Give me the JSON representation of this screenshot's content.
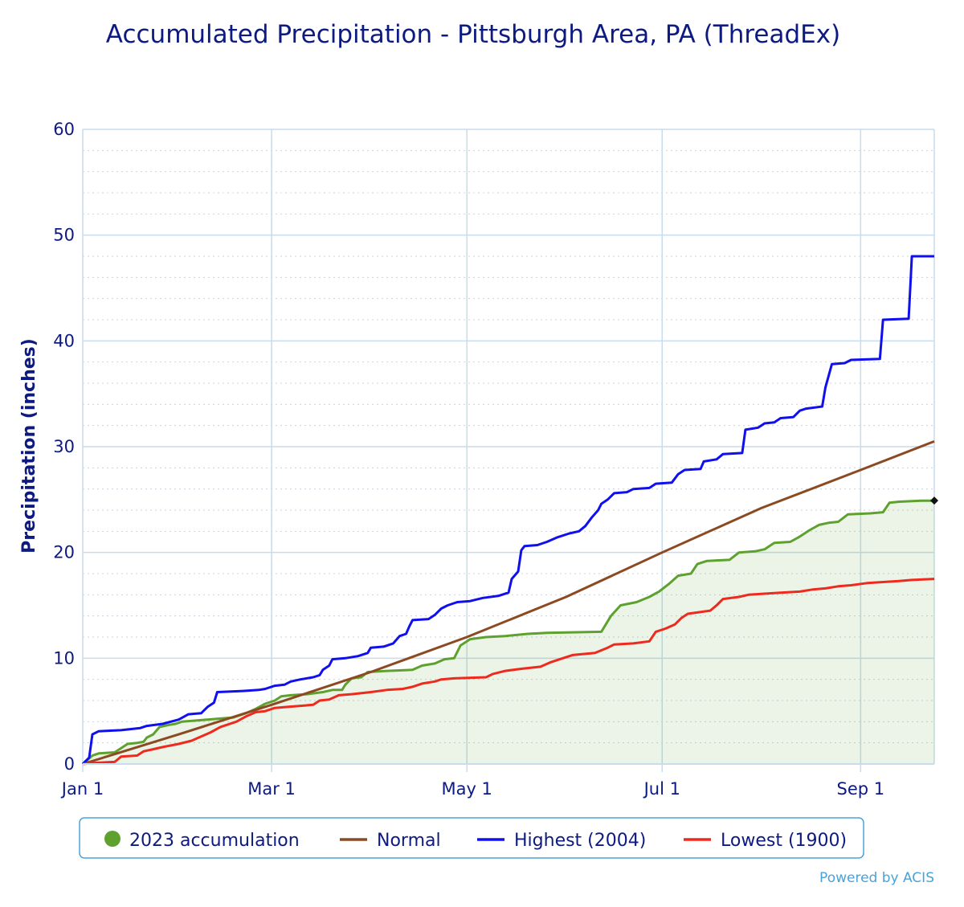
{
  "chart_data": {
    "type": "line",
    "title": "Accumulated Precipitation - Pittsburgh Area, PA (ThreadEx)",
    "ylabel": "Precipitation (inches)",
    "xlabel": "",
    "x_unit": "day of year",
    "x_ticks": [
      {
        "label": "Jan 1",
        "day": 0
      },
      {
        "label": "Mar 1",
        "day": 59
      },
      {
        "label": "May 1",
        "day": 120
      },
      {
        "label": "Jul 1",
        "day": 181
      },
      {
        "label": "Sep 1",
        "day": 243
      }
    ],
    "xlim": [
      0,
      266
    ],
    "ylim": [
      0,
      60
    ],
    "y_ticks": [
      0,
      10,
      20,
      30,
      40,
      50,
      60
    ],
    "grid": true,
    "legend_position": "bottom",
    "credit": "Powered by ACIS",
    "series": [
      {
        "name": "2023 accumulation",
        "style": "area",
        "color": "#5ea12e",
        "points": [
          [
            0,
            0
          ],
          [
            3,
            0.8
          ],
          [
            5,
            1.0
          ],
          [
            10,
            1.1
          ],
          [
            12,
            1.5
          ],
          [
            14,
            1.9
          ],
          [
            17,
            2.0
          ],
          [
            19,
            2.1
          ],
          [
            20,
            2.5
          ],
          [
            22,
            2.8
          ],
          [
            24,
            3.5
          ],
          [
            27,
            3.7
          ],
          [
            29,
            3.8
          ],
          [
            31,
            4.0
          ],
          [
            35,
            4.1
          ],
          [
            39,
            4.2
          ],
          [
            43,
            4.3
          ],
          [
            47,
            4.4
          ],
          [
            51,
            4.8
          ],
          [
            54,
            5.2
          ],
          [
            57,
            5.7
          ],
          [
            60,
            6.0
          ],
          [
            62,
            6.4
          ],
          [
            65,
            6.5
          ],
          [
            70,
            6.6
          ],
          [
            75,
            6.8
          ],
          [
            78,
            7.0
          ],
          [
            81,
            7.0
          ],
          [
            82,
            7.5
          ],
          [
            84,
            8.1
          ],
          [
            87,
            8.2
          ],
          [
            89,
            8.7
          ],
          [
            95,
            8.8
          ],
          [
            103,
            8.9
          ],
          [
            106,
            9.3
          ],
          [
            110,
            9.5
          ],
          [
            113,
            9.9
          ],
          [
            116,
            10.0
          ],
          [
            118,
            11.2
          ],
          [
            121,
            11.8
          ],
          [
            126,
            12.0
          ],
          [
            132,
            12.1
          ],
          [
            139,
            12.3
          ],
          [
            145,
            12.4
          ],
          [
            162,
            12.5
          ],
          [
            165,
            14.0
          ],
          [
            168,
            15.0
          ],
          [
            173,
            15.3
          ],
          [
            177,
            15.8
          ],
          [
            180,
            16.3
          ],
          [
            183,
            17.0
          ],
          [
            186,
            17.8
          ],
          [
            190,
            18.0
          ],
          [
            192,
            18.9
          ],
          [
            195,
            19.2
          ],
          [
            202,
            19.3
          ],
          [
            205,
            20.0
          ],
          [
            210,
            20.1
          ],
          [
            213,
            20.3
          ],
          [
            216,
            20.9
          ],
          [
            221,
            21.0
          ],
          [
            224,
            21.5
          ],
          [
            227,
            22.1
          ],
          [
            230,
            22.6
          ],
          [
            233,
            22.8
          ],
          [
            236,
            22.9
          ],
          [
            239,
            23.6
          ],
          [
            246,
            23.7
          ],
          [
            250,
            23.8
          ],
          [
            252,
            24.7
          ],
          [
            255,
            24.8
          ],
          [
            262,
            24.9
          ],
          [
            266,
            24.9
          ]
        ]
      },
      {
        "name": "Normal",
        "style": "line",
        "color": "#8b4a22",
        "points": [
          [
            0,
            0
          ],
          [
            30,
            2.8
          ],
          [
            59,
            5.6
          ],
          [
            90,
            8.7
          ],
          [
            120,
            12.0
          ],
          [
            151,
            15.8
          ],
          [
            181,
            20.0
          ],
          [
            212,
            24.2
          ],
          [
            243,
            27.8
          ],
          [
            266,
            30.5
          ]
        ]
      },
      {
        "name": "Highest (2004)",
        "style": "line",
        "color": "#1010ee",
        "points": [
          [
            0,
            0
          ],
          [
            2,
            0.6
          ],
          [
            3,
            2.8
          ],
          [
            5,
            3.1
          ],
          [
            12,
            3.2
          ],
          [
            18,
            3.4
          ],
          [
            20,
            3.6
          ],
          [
            25,
            3.8
          ],
          [
            30,
            4.2
          ],
          [
            33,
            4.7
          ],
          [
            37,
            4.8
          ],
          [
            39,
            5.4
          ],
          [
            41,
            5.8
          ],
          [
            42,
            6.8
          ],
          [
            50,
            6.9
          ],
          [
            55,
            7.0
          ],
          [
            57,
            7.1
          ],
          [
            60,
            7.4
          ],
          [
            63,
            7.5
          ],
          [
            65,
            7.8
          ],
          [
            68,
            8.0
          ],
          [
            72,
            8.2
          ],
          [
            74,
            8.4
          ],
          [
            75,
            8.9
          ],
          [
            77,
            9.3
          ],
          [
            78,
            9.9
          ],
          [
            82,
            10.0
          ],
          [
            86,
            10.2
          ],
          [
            89,
            10.5
          ],
          [
            90,
            11.0
          ],
          [
            94,
            11.1
          ],
          [
            97,
            11.4
          ],
          [
            99,
            12.1
          ],
          [
            101,
            12.3
          ],
          [
            102,
            13.0
          ],
          [
            103,
            13.6
          ],
          [
            108,
            13.7
          ],
          [
            110,
            14.1
          ],
          [
            112,
            14.7
          ],
          [
            114,
            15.0
          ],
          [
            117,
            15.3
          ],
          [
            121,
            15.4
          ],
          [
            125,
            15.7
          ],
          [
            130,
            15.9
          ],
          [
            133,
            16.2
          ],
          [
            134,
            17.5
          ],
          [
            136,
            18.2
          ],
          [
            137,
            20.2
          ],
          [
            138,
            20.6
          ],
          [
            142,
            20.7
          ],
          [
            145,
            21.0
          ],
          [
            148,
            21.4
          ],
          [
            152,
            21.8
          ],
          [
            155,
            22.0
          ],
          [
            157,
            22.5
          ],
          [
            159,
            23.3
          ],
          [
            161,
            24.0
          ],
          [
            162,
            24.6
          ],
          [
            164,
            25.0
          ],
          [
            166,
            25.6
          ],
          [
            170,
            25.7
          ],
          [
            172,
            26.0
          ],
          [
            177,
            26.1
          ],
          [
            179,
            26.5
          ],
          [
            184,
            26.6
          ],
          [
            186,
            27.4
          ],
          [
            188,
            27.8
          ],
          [
            193,
            27.9
          ],
          [
            194,
            28.6
          ],
          [
            198,
            28.8
          ],
          [
            200,
            29.3
          ],
          [
            206,
            29.4
          ],
          [
            207,
            31.6
          ],
          [
            211,
            31.8
          ],
          [
            213,
            32.2
          ],
          [
            216,
            32.3
          ],
          [
            218,
            32.7
          ],
          [
            222,
            32.8
          ],
          [
            224,
            33.4
          ],
          [
            226,
            33.6
          ],
          [
            231,
            33.8
          ],
          [
            232,
            35.6
          ],
          [
            234,
            37.8
          ],
          [
            238,
            37.9
          ],
          [
            240,
            38.2
          ],
          [
            249,
            38.3
          ],
          [
            250,
            42.0
          ],
          [
            258,
            42.1
          ],
          [
            259,
            48.0
          ],
          [
            266,
            48.0
          ]
        ]
      },
      {
        "name": "Lowest (1900)",
        "style": "line",
        "color": "#ee2a1f",
        "points": [
          [
            0,
            0
          ],
          [
            3,
            0.1
          ],
          [
            10,
            0.2
          ],
          [
            12,
            0.7
          ],
          [
            17,
            0.8
          ],
          [
            19,
            1.2
          ],
          [
            22,
            1.4
          ],
          [
            25,
            1.6
          ],
          [
            30,
            1.9
          ],
          [
            34,
            2.2
          ],
          [
            37,
            2.6
          ],
          [
            40,
            3.0
          ],
          [
            43,
            3.5
          ],
          [
            48,
            4.0
          ],
          [
            51,
            4.5
          ],
          [
            54,
            4.9
          ],
          [
            57,
            5.0
          ],
          [
            60,
            5.3
          ],
          [
            64,
            5.4
          ],
          [
            68,
            5.5
          ],
          [
            72,
            5.6
          ],
          [
            74,
            6.0
          ],
          [
            77,
            6.1
          ],
          [
            80,
            6.5
          ],
          [
            84,
            6.6
          ],
          [
            90,
            6.8
          ],
          [
            95,
            7.0
          ],
          [
            100,
            7.1
          ],
          [
            103,
            7.3
          ],
          [
            106,
            7.6
          ],
          [
            110,
            7.8
          ],
          [
            112,
            8.0
          ],
          [
            116,
            8.1
          ],
          [
            126,
            8.2
          ],
          [
            128,
            8.5
          ],
          [
            132,
            8.8
          ],
          [
            137,
            9.0
          ],
          [
            143,
            9.2
          ],
          [
            146,
            9.6
          ],
          [
            150,
            10.0
          ],
          [
            153,
            10.3
          ],
          [
            160,
            10.5
          ],
          [
            164,
            11.0
          ],
          [
            166,
            11.3
          ],
          [
            172,
            11.4
          ],
          [
            177,
            11.6
          ],
          [
            179,
            12.5
          ],
          [
            182,
            12.8
          ],
          [
            185,
            13.2
          ],
          [
            187,
            13.8
          ],
          [
            189,
            14.2
          ],
          [
            196,
            14.5
          ],
          [
            198,
            15.0
          ],
          [
            200,
            15.6
          ],
          [
            205,
            15.8
          ],
          [
            208,
            16.0
          ],
          [
            213,
            16.1
          ],
          [
            218,
            16.2
          ],
          [
            224,
            16.3
          ],
          [
            228,
            16.5
          ],
          [
            232,
            16.6
          ],
          [
            236,
            16.8
          ],
          [
            240,
            16.9
          ],
          [
            245,
            17.1
          ],
          [
            250,
            17.2
          ],
          [
            255,
            17.3
          ],
          [
            259,
            17.4
          ],
          [
            266,
            17.5
          ]
        ]
      }
    ]
  }
}
